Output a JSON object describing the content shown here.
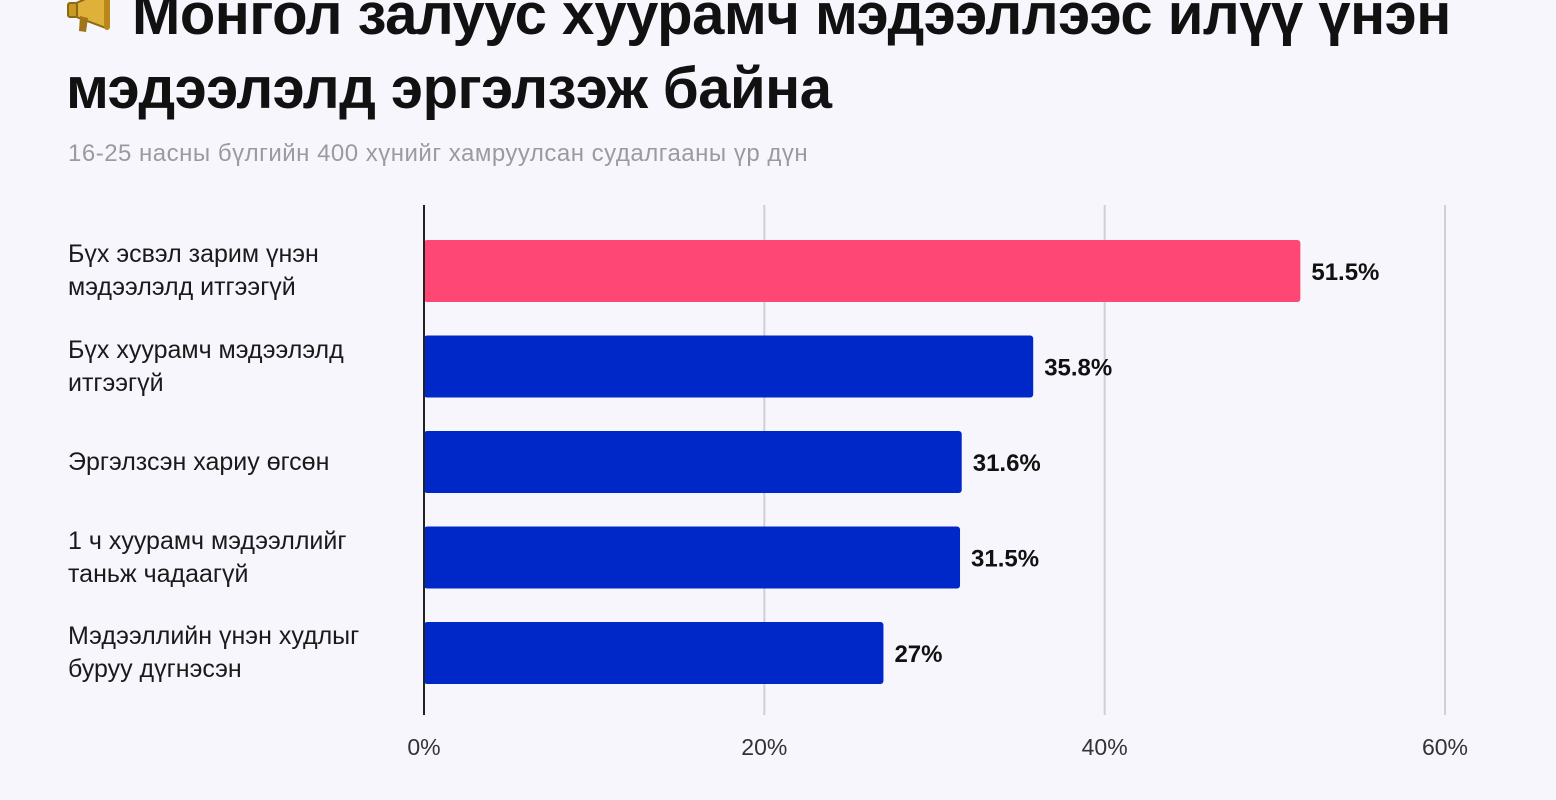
{
  "chart_data": {
    "type": "bar",
    "orientation": "horizontal",
    "title": "Монгол залуус хуурамч мэдээллээс илүү үнэн мэдээлэлд эргэлзэж байна",
    "subtitle": "16-25 насны бүлгийн 400 хүнийг хамруулсан судалгааны үр дүн",
    "categories": [
      "Бүх эсвэл зарим үнэн мэдээлэлд итгээгүй",
      "Бүх хуурамч мэдээлэлд итгээгүй",
      "Эргэлзсэн хариу өгсөн",
      "1 ч хуурамч мэдээллийг таньж чадаагүй",
      "Мэдээллийн үнэн худлыг буруу дүгнэсэн"
    ],
    "values": [
      51.5,
      35.8,
      31.6,
      31.5,
      27
    ],
    "value_labels": [
      "51.5%",
      "35.8%",
      "31.6%",
      "31.5%",
      "27%"
    ],
    "xlim": [
      0,
      60
    ],
    "ticks": [
      0,
      20,
      40,
      60
    ],
    "tick_labels": [
      "0%",
      "20%",
      "40%",
      "60%"
    ],
    "grid": true,
    "colors": {
      "highlight": "#ff4776",
      "bar": "#0028c8",
      "grid": "#cfcfd6",
      "axis": "#222222"
    }
  }
}
